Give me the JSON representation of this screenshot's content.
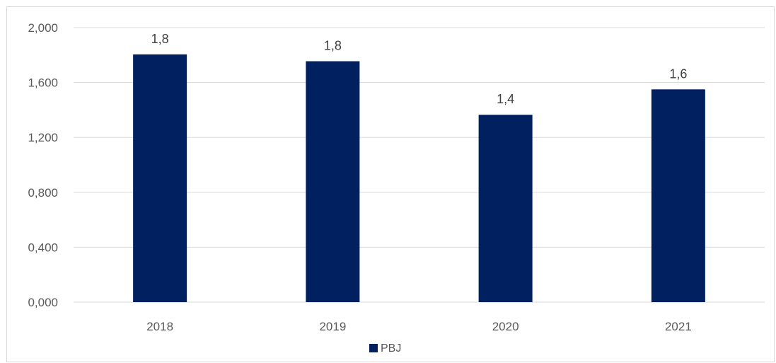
{
  "chart_data": {
    "type": "bar",
    "categories": [
      "2018",
      "2019",
      "2020",
      "2021"
    ],
    "series": [
      {
        "name": "PBJ",
        "values": [
          1.805,
          1.755,
          1.365,
          1.55
        ],
        "data_labels": [
          "1,8",
          "1,8",
          "1,4",
          "1,6"
        ],
        "color": "#002060"
      }
    ],
    "ylim": [
      0,
      2
    ],
    "yticks": [
      0,
      0.4,
      0.8,
      1.2,
      1.6,
      2.0
    ],
    "ytick_labels": [
      "0,000",
      "0,400",
      "0,800",
      "1,200",
      "1,600",
      "2,000"
    ],
    "grid": true,
    "legend_position": "bottom",
    "gridline_color": "#d9d9d9"
  }
}
